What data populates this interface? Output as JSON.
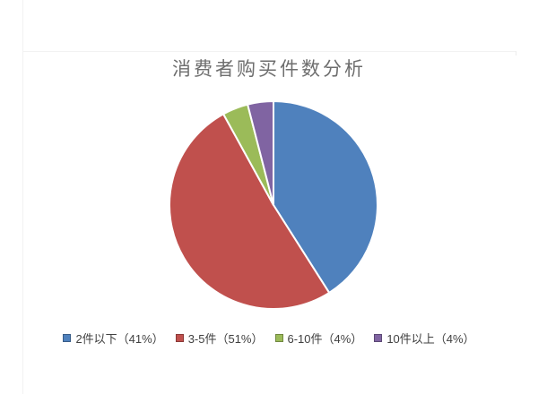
{
  "page": {
    "background_color": "#ffffff",
    "edge_line_color": "#f2f2f2"
  },
  "chart_data": {
    "type": "pie",
    "title": "消费者购买件数分析",
    "categories": [
      "2件以下",
      "3-5件",
      "6-10件",
      "10件以上"
    ],
    "values": [
      41,
      51,
      4,
      4
    ],
    "value_unit": "%",
    "colors": [
      "#4f81bd",
      "#c0504d",
      "#9bbb59",
      "#8064a2"
    ],
    "legend_labels": [
      "2件以下（41%）",
      "3-5件（51%）",
      "6-10件（4%）",
      "10件以上（4%）"
    ],
    "legend_position": "bottom",
    "start_angle_deg": -90,
    "direction": "clockwise",
    "slice_gap_color": "#ffffff",
    "title_color": "#6e6e6e",
    "legend_text_color": "#404040",
    "swatch_border_color": "rgba(0,0,0,0.28)"
  }
}
